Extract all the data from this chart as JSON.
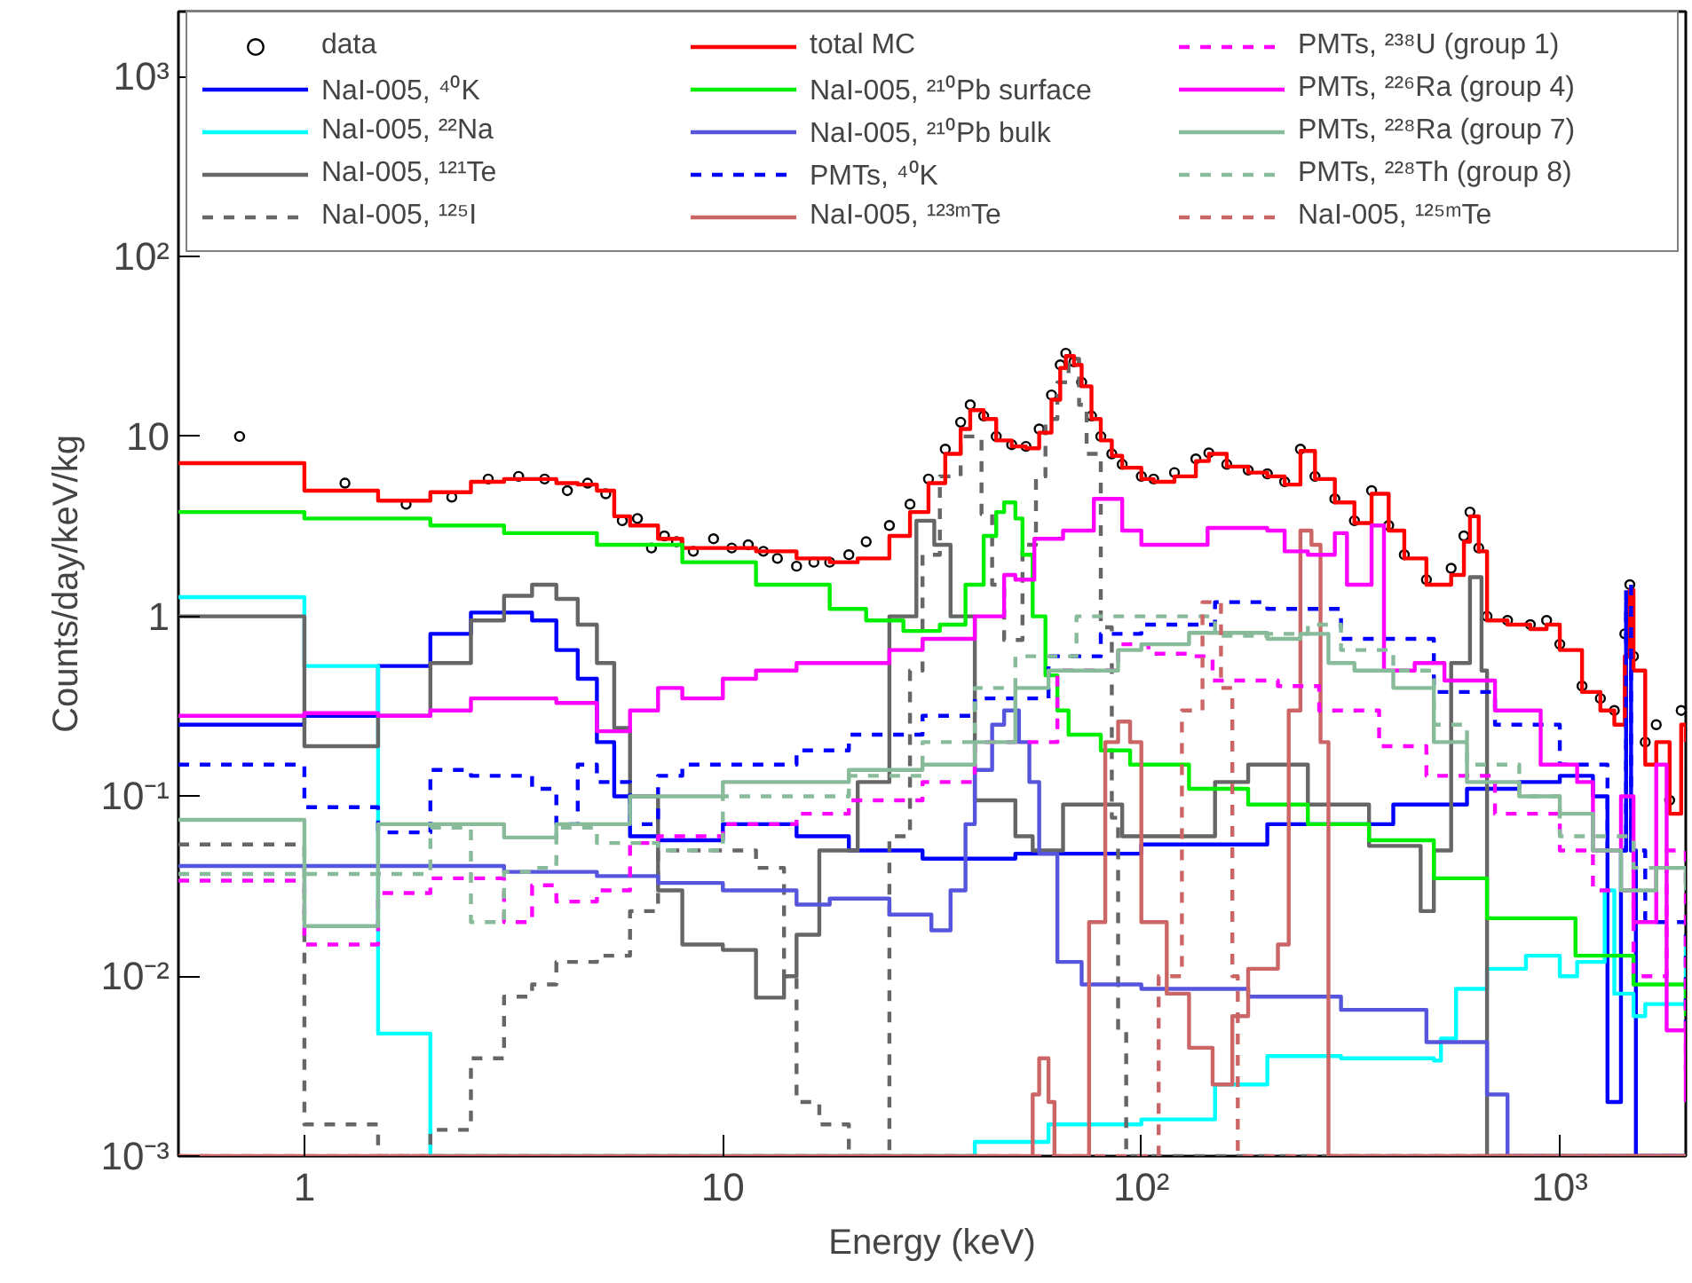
{
  "chart_data": {
    "type": "step",
    "xlabel": "Energy (keV)",
    "ylabel": "Counts/day/keV/kg",
    "log": "xy",
    "legend": "top",
    "xlim": [
      0.5,
      2000
    ],
    "ylim": [
      0.001,
      2300
    ],
    "xticks": [
      1,
      10,
      {
        "value": 100,
        "label": "10²"
      },
      {
        "value": 1000,
        "label": "10³"
      }
    ],
    "yticks": [
      {
        "value": 0.001,
        "label": "10⁻³"
      },
      {
        "value": 0.01,
        "label": "10⁻²"
      },
      {
        "value": 0.1,
        "label": "10⁻¹"
      },
      1,
      10,
      {
        "value": 100,
        "label": "10²"
      },
      {
        "value": 1000,
        "label": "10³"
      }
    ],
    "series": [
      {
        "name": "data",
        "type": "scatter",
        "marker": "circle",
        "color": "#000000",
        "x": [
          0.7,
          1.25,
          1.75,
          2.25,
          2.75,
          3.25,
          3.75,
          4.25,
          4.75,
          5.25,
          5.75,
          6.25,
          6.75,
          7.25,
          7.75,
          8.5,
          9.5,
          10.5,
          11.5,
          12.5,
          13.5,
          15,
          16.5,
          18,
          20,
          22,
          25,
          28,
          31,
          34,
          37,
          39,
          42,
          45,
          49,
          53,
          57,
          61,
          64,
          66,
          69,
          72,
          76,
          80,
          85,
          90,
          100,
          107,
          120,
          135,
          145,
          160,
          180,
          200,
          220,
          240,
          260,
          290,
          323,
          355,
          390,
          425,
          480,
          550,
          590,
          610,
          640,
          670,
          750,
          850,
          930,
          1000,
          1130,
          1250,
          1350,
          1430,
          1470,
          1500,
          1600,
          1700,
          1830,
          1950
        ],
        "values": [
          10,
          5.5,
          4.2,
          4.6,
          5.8,
          6,
          5.8,
          5,
          5.5,
          4.8,
          3.4,
          3.5,
          2.4,
          2.8,
          2.6,
          2.3,
          2.7,
          2.4,
          2.5,
          2.3,
          2.1,
          1.9,
          2.0,
          2.0,
          2.2,
          2.6,
          3.2,
          4.2,
          5.8,
          8.5,
          12,
          15,
          13,
          10,
          9,
          8.8,
          11,
          17,
          25,
          29,
          26,
          20,
          13,
          10,
          8,
          7,
          6,
          5.8,
          6.3,
          7.5,
          8.1,
          7,
          6.5,
          6.2,
          5.6,
          8.5,
          6,
          4.5,
          3.4,
          5,
          3.2,
          2.2,
          1.6,
          1.85,
          2.8,
          3.8,
          2.4,
          1.0,
          0.95,
          0.9,
          0.95,
          0.7,
          0.41,
          0.35,
          0.3,
          0.8,
          1.5,
          0.6,
          0.2,
          0.25,
          0.095,
          0.3
        ]
      },
      {
        "name": "NaI-005, ⁴⁰K",
        "color": "#0000ff",
        "line_style": "solid",
        "x": [
          0.5,
          1,
          1.5,
          2,
          2.5,
          3.5,
          4,
          4.5,
          5,
          5.5,
          6,
          7,
          10,
          15,
          20,
          30,
          50,
          100,
          200,
          400,
          600,
          800,
          1000,
          1200,
          1300,
          1400,
          1440,
          1480,
          1520,
          1550,
          2000
        ],
        "values": [
          0.25,
          0.28,
          0.53,
          0.8,
          1.05,
          0.95,
          0.65,
          0.45,
          0.2,
          0.1,
          0.06,
          0.057,
          0.07,
          0.06,
          0.05,
          0.045,
          0.048,
          0.054,
          0.07,
          0.09,
          0.11,
          0.12,
          0.13,
          0.1,
          0.002,
          0.05,
          1.2,
          0.05,
          0.001,
          0.001,
          0.001
        ]
      },
      {
        "name": "NaI-005, ²²Na",
        "color": "#00ffff",
        "line_style": "solid",
        "x": [
          0.5,
          1,
          1.5,
          2,
          40,
          60,
          80,
          100,
          150,
          200,
          300,
          500,
          520,
          565,
          670,
          830,
          1000,
          1100,
          1280,
          1350,
          1500,
          1600,
          2000
        ],
        "values": [
          1.28,
          0.53,
          0.0048,
          0.001,
          0.0012,
          0.0015,
          0.0015,
          0.0016,
          0.0025,
          0.0036,
          0.0035,
          0.0034,
          0.0045,
          0.0085,
          0.011,
          0.013,
          0.01,
          0.012,
          0.03,
          0.008,
          0.006,
          0.007,
          0.015
        ]
      },
      {
        "name": "NaI-005, ¹²¹Te",
        "color": "#666666",
        "line_style": "solid",
        "x": [
          0.5,
          1,
          1.5,
          2,
          2.5,
          3,
          3.5,
          4,
          4.5,
          5,
          5.5,
          6,
          7,
          8,
          10,
          12,
          14,
          15,
          17,
          21,
          25,
          29,
          32,
          35,
          40,
          50,
          55,
          65,
          90,
          150,
          180,
          250,
          350,
          465,
          500,
          550,
          610,
          650,
          670,
          2000
        ],
        "values": [
          1.0,
          0.19,
          0.28,
          0.55,
          0.95,
          1.3,
          1.5,
          1.25,
          0.9,
          0.55,
          0.24,
          0.1,
          0.03,
          0.015,
          0.014,
          0.0076,
          0.01,
          0.017,
          0.05,
          0.12,
          1.0,
          3.4,
          2.5,
          1.0,
          0.095,
          0.06,
          0.05,
          0.09,
          0.06,
          0.12,
          0.15,
          0.09,
          0.053,
          0.023,
          0.05,
          0.55,
          1.65,
          0.5,
          0.001,
          0.001
        ]
      },
      {
        "name": "NaI-005, ¹²⁵I",
        "color": "#666666",
        "line_style": "dashed",
        "x": [
          0.5,
          1,
          1.5,
          2,
          2.5,
          3,
          3.5,
          4,
          5,
          6,
          7,
          8,
          12,
          14,
          15,
          17,
          20,
          25,
          28,
          30,
          33,
          37,
          41.5,
          44,
          47,
          52,
          56,
          59,
          63,
          67,
          71,
          74,
          80,
          85,
          88,
          92,
          2000
        ],
        "values": [
          0.054,
          0.0015,
          0.001,
          0.0014,
          0.0035,
          0.0077,
          0.009,
          0.012,
          0.013,
          0.023,
          0.05,
          0.05,
          0.04,
          0.01,
          0.002,
          0.0015,
          0.001,
          0.06,
          0.5,
          2.2,
          6,
          10,
          3.7,
          1.5,
          0.74,
          2.5,
          6,
          12.5,
          20,
          27,
          15,
          8,
          0.87,
          0.076,
          0.005,
          0.001,
          0.001
        ]
      },
      {
        "name": "total MC",
        "color": "#ff0000",
        "line_style": "solid",
        "x": [
          0.5,
          1,
          1.5,
          2,
          2.5,
          3,
          3.5,
          4,
          4.5,
          5,
          5.5,
          6,
          7,
          8,
          10,
          12,
          15,
          18,
          21,
          25,
          28,
          31,
          34,
          37,
          39,
          42,
          45,
          49,
          53,
          57,
          61,
          64,
          66,
          69,
          72,
          76,
          80,
          85,
          90,
          100,
          107,
          120,
          135,
          145,
          160,
          180,
          200,
          220,
          240,
          260,
          290,
          323,
          355,
          390,
          425,
          480,
          550,
          590,
          610,
          640,
          670,
          750,
          850,
          930,
          1000,
          1130,
          1250,
          1350,
          1430,
          1470,
          1500,
          1600,
          1700,
          1830,
          1950,
          2000
        ],
        "values": [
          7.1,
          5.0,
          4.4,
          4.9,
          5.6,
          5.8,
          5.8,
          5.5,
          5.4,
          5.0,
          3.6,
          3.2,
          2.7,
          2.4,
          2.4,
          2.3,
          2.1,
          2.0,
          2.1,
          2.8,
          3.8,
          5.5,
          8,
          11,
          14,
          12.5,
          9.5,
          8.8,
          8.6,
          10.5,
          16,
          24,
          28,
          25,
          19,
          12.5,
          9.5,
          7.8,
          6.7,
          5.8,
          5.6,
          6.0,
          7.3,
          8.0,
          6.8,
          6.3,
          6.0,
          5.4,
          8.3,
          5.8,
          4.3,
          3.3,
          4.8,
          3.0,
          2.1,
          1.5,
          1.7,
          2.6,
          3.6,
          2.3,
          0.95,
          0.9,
          0.85,
          0.9,
          0.65,
          0.38,
          0.3,
          0.25,
          0.6,
          1.4,
          0.5,
          0.15,
          0.2,
          0.08,
          0.25,
          0.2
        ]
      },
      {
        "name": "NaI-005, ²¹⁰Pb surface",
        "color": "#00ee00",
        "line_style": "solid",
        "x": [
          0.5,
          1,
          2,
          3,
          5,
          8,
          12,
          18,
          22,
          27,
          33,
          38,
          42,
          45,
          47,
          50,
          52,
          55,
          59,
          63,
          67,
          80,
          94,
          130,
          180,
          250,
          350,
          500,
          670,
          1090,
          1500,
          2000
        ],
        "values": [
          3.8,
          3.5,
          3.2,
          2.9,
          2.5,
          2.0,
          1.5,
          1.1,
          0.95,
          0.83,
          0.9,
          1.5,
          2.8,
          3.8,
          4.3,
          3.5,
          2.2,
          1.0,
          0.47,
          0.3,
          0.22,
          0.18,
          0.15,
          0.11,
          0.09,
          0.07,
          0.057,
          0.035,
          0.021,
          0.013,
          0.009,
          0.006
        ]
      },
      {
        "name": "NaI-005, ²¹⁰Pb bulk",
        "color": "#5555dd",
        "line_style": "solid",
        "x": [
          0.5,
          2,
          3,
          5,
          7,
          10,
          15,
          18,
          25,
          31.5,
          35,
          38,
          40,
          44,
          47,
          51,
          54,
          57,
          63,
          72,
          100,
          180,
          300,
          480,
          670,
          750,
          2000
        ],
        "values": [
          0.041,
          0.041,
          0.038,
          0.036,
          0.033,
          0.03,
          0.025,
          0.027,
          0.022,
          0.018,
          0.03,
          0.07,
          0.14,
          0.25,
          0.3,
          0.2,
          0.12,
          0.048,
          0.012,
          0.009,
          0.0085,
          0.0077,
          0.0065,
          0.0043,
          0.0022,
          0.001,
          0.001
        ]
      },
      {
        "name": "PMTs, ⁴⁰K",
        "color": "#0000ff",
        "line_style": "dashed",
        "x": [
          0.5,
          1,
          1.5,
          2,
          2.5,
          3.5,
          4,
          4.5,
          5,
          6,
          7,
          8,
          10,
          15,
          20,
          30,
          40,
          60,
          80,
          100,
          150,
          200,
          300,
          500,
          700,
          1000,
          1300,
          1440,
          1480,
          1600,
          2000
        ],
        "values": [
          0.15,
          0.087,
          0.063,
          0.14,
          0.13,
          0.11,
          0.07,
          0.15,
          0.12,
          0.07,
          0.13,
          0.15,
          0.15,
          0.18,
          0.22,
          0.28,
          0.35,
          0.6,
          0.8,
          0.9,
          1.2,
          1.1,
          0.75,
          0.38,
          0.25,
          0.15,
          0.05,
          1.5,
          0.05,
          0.02,
          0.005
        ]
      },
      {
        "name": "NaI-005, ¹²³ᵐTe",
        "color": "#cc6666",
        "line_style": "solid",
        "x": [
          0.5,
          50,
          55,
          57,
          60,
          62,
          70,
          75,
          82,
          88,
          94,
          100,
          115,
          130,
          148,
          165,
          180,
          212,
          225,
          240,
          255,
          268,
          280,
          2000
        ],
        "values": [
          0.001,
          0.001,
          0.0022,
          0.0035,
          0.002,
          0.001,
          0.001,
          0.02,
          0.2,
          0.26,
          0.2,
          0.02,
          0.008,
          0.004,
          0.0025,
          0.006,
          0.011,
          0.015,
          0.3,
          3.0,
          2.5,
          0.2,
          0.001,
          0.001
        ]
      },
      {
        "name": "PMTs, ²³⁸U (group 1)",
        "color": "#ff00ff",
        "line_style": "dashed",
        "x": [
          0.5,
          1,
          1.5,
          2,
          3,
          3.5,
          4,
          5,
          6,
          7,
          10,
          15,
          20,
          30,
          40,
          63,
          88,
          104,
          130,
          148,
          212,
          266,
          370,
          480,
          700,
          1000,
          1200,
          1500,
          1800,
          2000
        ],
        "values": [
          0.034,
          0.015,
          0.029,
          0.035,
          0.02,
          0.032,
          0.026,
          0.03,
          0.055,
          0.06,
          0.07,
          0.08,
          0.095,
          0.12,
          0.2,
          0.5,
          0.7,
          0.62,
          0.6,
          0.44,
          0.41,
          0.3,
          0.19,
          0.13,
          0.08,
          0.05,
          0.03,
          0.01,
          0.05,
          0.003
        ]
      },
      {
        "name": "PMTs, ²²⁶Ra (group 4)",
        "color": "#ff00ff",
        "line_style": "solid",
        "x": [
          0.5,
          1,
          1.5,
          2,
          2.5,
          4,
          5,
          6,
          7,
          8,
          10,
          12,
          15,
          18,
          25,
          30,
          40,
          47,
          50,
          55.5,
          65,
          77,
          90,
          100,
          144,
          200,
          220,
          250,
          290,
          310,
          355,
          380,
          450,
          530,
          700,
          900,
          1100,
          1200,
          1400,
          1500,
          1700,
          1800,
          2000
        ],
        "values": [
          0.28,
          0.29,
          0.28,
          0.3,
          0.35,
          0.33,
          0.23,
          0.3,
          0.4,
          0.35,
          0.45,
          0.5,
          0.55,
          0.55,
          0.65,
          0.75,
          1.0,
          1.7,
          1.6,
          2.7,
          3.0,
          4.5,
          3.0,
          2.5,
          3.1,
          3.0,
          2.3,
          2.2,
          2.9,
          1.5,
          3.2,
          0.5,
          0.55,
          0.44,
          0.3,
          0.15,
          0.12,
          0.05,
          0.1,
          0.02,
          0.15,
          0.005,
          0.002
        ]
      },
      {
        "name": "PMTs, ²²⁸Ra (group 7)",
        "color": "#88bb99",
        "line_style": "solid",
        "x": [
          0.5,
          1,
          1.5,
          2,
          3,
          4,
          6,
          8,
          10,
          15,
          20,
          30,
          40,
          50,
          60,
          88,
          100,
          130,
          200,
          240,
          280,
          323,
          400,
          500,
          600,
          800,
          1000,
          1200,
          1400,
          1700,
          2000
        ],
        "values": [
          0.074,
          0.019,
          0.07,
          0.07,
          0.059,
          0.07,
          0.1,
          0.1,
          0.12,
          0.12,
          0.14,
          0.15,
          0.2,
          0.4,
          0.5,
          0.65,
          0.7,
          0.81,
          0.75,
          0.8,
          0.55,
          0.5,
          0.4,
          0.2,
          0.12,
          0.1,
          0.08,
          0.05,
          0.03,
          0.04,
          0.03
        ]
      },
      {
        "name": "PMTs, ²²⁸Th (group 8)",
        "color": "#88bb99",
        "line_style": "dashed",
        "x": [
          0.5,
          2,
          2.5,
          3,
          3.5,
          4,
          5,
          7,
          10,
          15,
          20,
          30,
          40,
          50,
          70,
          100,
          150,
          200,
          250,
          300,
          400,
          500,
          600,
          800,
          1000,
          1500,
          2000
        ],
        "values": [
          0.037,
          0.067,
          0.02,
          0.038,
          0.04,
          0.067,
          0.055,
          0.05,
          0.1,
          0.1,
          0.13,
          0.2,
          0.4,
          0.6,
          1.0,
          1.0,
          0.78,
          0.8,
          0.9,
          0.65,
          0.5,
          0.25,
          0.15,
          0.1,
          0.06,
          0.04,
          0.03
        ]
      },
      {
        "name": "NaI-005, ¹²⁵ᵐTe",
        "color": "#cc6666",
        "line_style": "dashed",
        "x": [
          0.5,
          100,
          110,
          125,
          140,
          155,
          165,
          170,
          2000
        ],
        "values": [
          0.001,
          0.001,
          0.01,
          0.3,
          1.2,
          0.4,
          0.01,
          0.001,
          0.001
        ]
      }
    ]
  }
}
